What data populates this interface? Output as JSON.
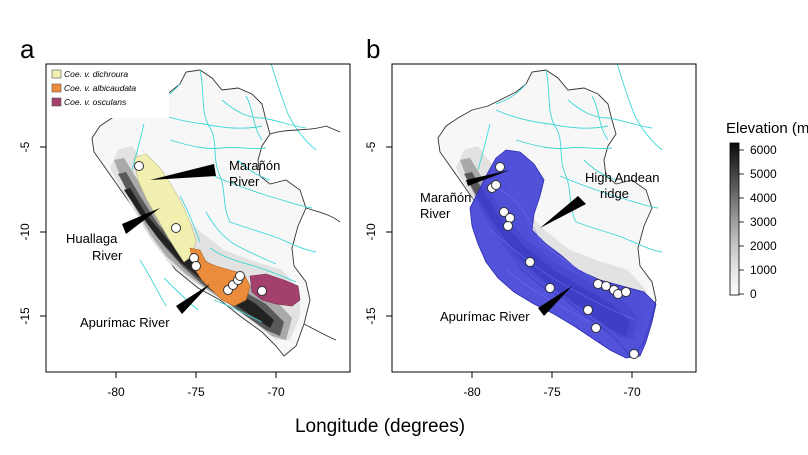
{
  "figure": {
    "xlabel": "Longitude (degrees)",
    "colorbar": {
      "title": "Elevation (m",
      "ticks": [
        "6000",
        "5000",
        "4000",
        "3000",
        "2000",
        "1000",
        "0"
      ],
      "values": [
        6000,
        5000,
        4000,
        3000,
        2000,
        1000,
        0
      ]
    },
    "panel_a": {
      "letter": "a",
      "x_ticks": [
        "-80",
        "-75",
        "-70"
      ],
      "y_ticks": [
        "-5",
        "-10",
        "-15"
      ],
      "legend": [
        "Coe. v. dichroura",
        "Coe. v. albicaudata",
        "Coe. v. osculans"
      ],
      "legend_colors": [
        "#f1f0b0",
        "#ea8c3c",
        "#a4406c"
      ],
      "annotations": {
        "maranon_1": "Marañón",
        "maranon_2": "River",
        "huallaga_1": "Huallaga",
        "huallaga_2": "River",
        "apurimac": "Apurímac River"
      }
    },
    "panel_b": {
      "letter": "b",
      "x_ticks": [
        "-80",
        "-75",
        "-70"
      ],
      "y_ticks": [
        "-5",
        "-10",
        "-15"
      ],
      "annotations": {
        "maranon_1": "Marañón",
        "maranon_2": "River",
        "andean_1": "High Andean",
        "andean_2": "ridge",
        "apurimac": "Apurímac River"
      }
    }
  }
}
